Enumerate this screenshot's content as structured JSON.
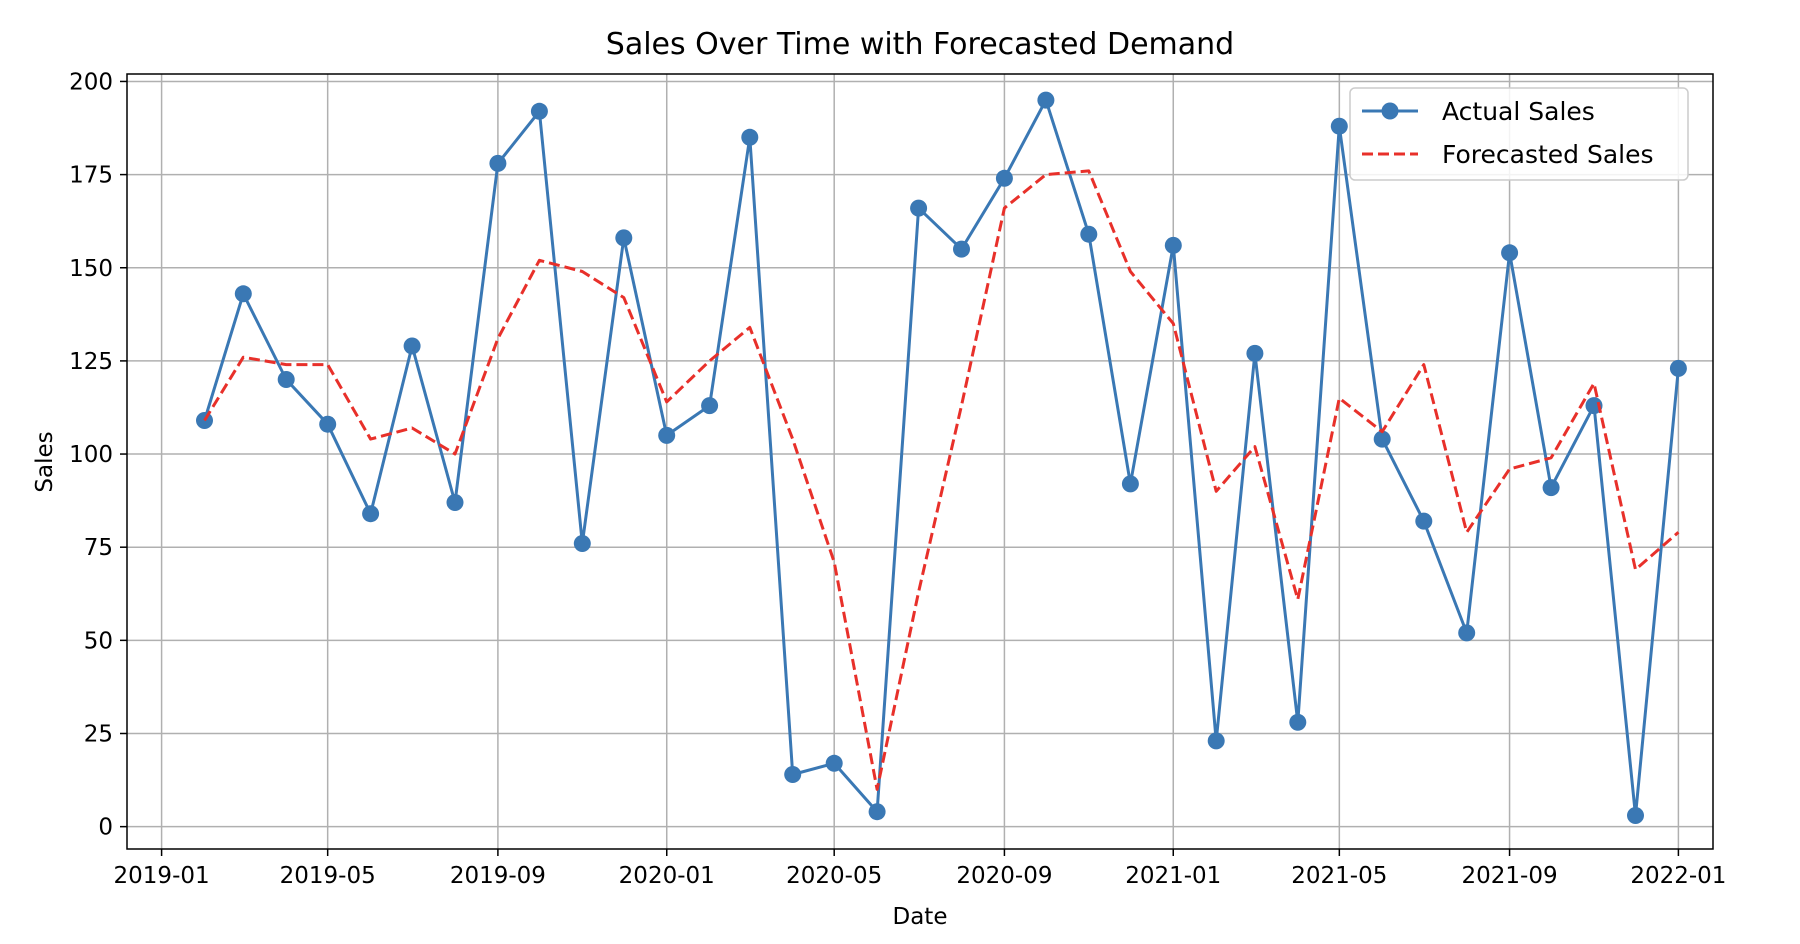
{
  "chart_data": {
    "type": "line",
    "title": "Sales Over Time with Forecasted Demand",
    "xlabel": "Date",
    "ylabel": "Sales",
    "x": [
      "2019-02-01",
      "2019-03-01",
      "2019-04-01",
      "2019-05-01",
      "2019-06-01",
      "2019-07-01",
      "2019-08-01",
      "2019-09-01",
      "2019-10-01",
      "2019-11-01",
      "2019-12-01",
      "2020-01-01",
      "2020-02-01",
      "2020-03-01",
      "2020-04-01",
      "2020-05-01",
      "2020-06-01",
      "2020-07-01",
      "2020-08-01",
      "2020-09-01",
      "2020-10-01",
      "2020-11-01",
      "2020-12-01",
      "2021-01-01",
      "2021-02-01",
      "2021-03-01",
      "2021-04-01",
      "2021-05-01",
      "2021-06-01",
      "2021-07-01",
      "2021-08-01",
      "2021-09-01",
      "2021-10-01",
      "2021-11-01",
      "2021-12-01",
      "2022-01-01"
    ],
    "series": [
      {
        "name": "Actual Sales",
        "color": "#3a78b4",
        "style": "solid-marker",
        "values": [
          109,
          143,
          120,
          108,
          84,
          129,
          87,
          178,
          192,
          76,
          158,
          105,
          113,
          185,
          14,
          17,
          4,
          166,
          155,
          174,
          195,
          159,
          92,
          156,
          23,
          127,
          28,
          188,
          104,
          82,
          52,
          154,
          91,
          113,
          3,
          123
        ]
      },
      {
        "name": "Forecasted Sales",
        "color": "#e8302a",
        "style": "dashed",
        "values": [
          109,
          126,
          124,
          124,
          104,
          107,
          100,
          131,
          152,
          149,
          142,
          114,
          125,
          134,
          104,
          71,
          10,
          63,
          113,
          166,
          175,
          176,
          149,
          135,
          90,
          102,
          61,
          115,
          106,
          124,
          79,
          96,
          99,
          119,
          69,
          79
        ]
      }
    ],
    "xlim": [
      "2018-12-07",
      "2022-01-26"
    ],
    "ylim": [
      -6,
      202
    ],
    "x_ticks": [
      "2019-01",
      "2019-05",
      "2019-09",
      "2020-01",
      "2020-05",
      "2020-09",
      "2021-01",
      "2021-05",
      "2021-09",
      "2022-01"
    ],
    "y_ticks": [
      0,
      25,
      50,
      75,
      100,
      125,
      150,
      175,
      200
    ],
    "grid": true,
    "legend_position": "top-right"
  }
}
